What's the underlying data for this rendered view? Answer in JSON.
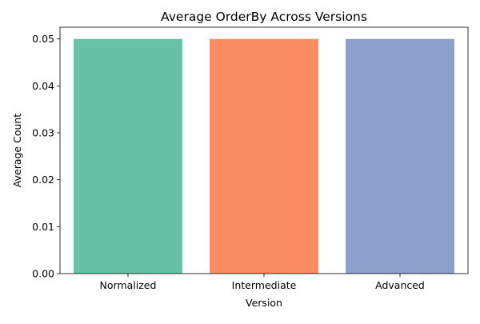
{
  "chart_data": {
    "type": "bar",
    "title": "Average OrderBy Across Versions",
    "xlabel": "Version",
    "ylabel": "Average Count",
    "categories": [
      "Normalized",
      "Intermediate",
      "Advanced"
    ],
    "values": [
      0.05,
      0.05,
      0.05
    ],
    "colors": [
      "#66c2a5",
      "#fc8d62",
      "#8da0cb"
    ],
    "ylim": [
      0,
      0.0525
    ],
    "yticks": [
      0.0,
      0.01,
      0.02,
      0.03,
      0.04,
      0.05
    ],
    "ytick_labels": [
      "0.00",
      "0.01",
      "0.02",
      "0.03",
      "0.04",
      "0.05"
    ],
    "grid": false,
    "legend": "none"
  }
}
